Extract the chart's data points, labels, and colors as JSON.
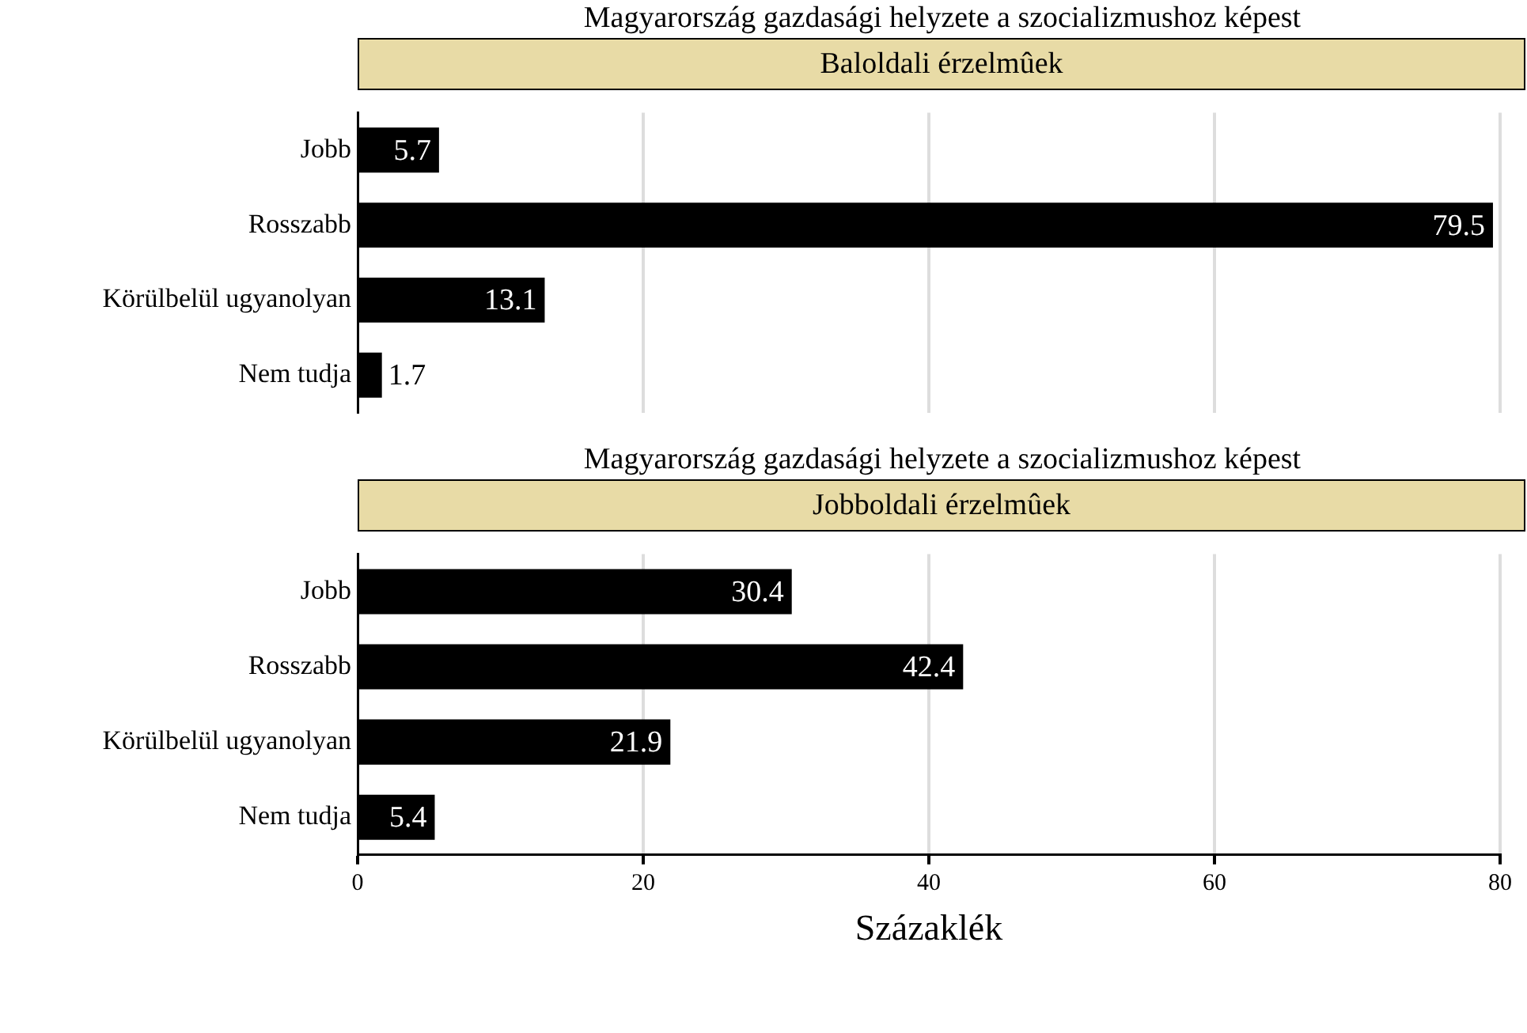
{
  "chart_data": [
    {
      "type": "bar",
      "orientation": "horizontal",
      "title": "Magyarország gazdasági helyzete a szocializmushoz képest",
      "subtitle": "Baloldali érzelmûek",
      "categories": [
        "Jobb",
        "Rosszabb",
        "Körülbelül ugyanolyan",
        "Nem tudja"
      ],
      "values": [
        5.7,
        79.5,
        13.1,
        1.7
      ],
      "color": "#000000",
      "xlim": [
        0,
        80
      ],
      "xticks": [
        0,
        20,
        40,
        60,
        80
      ],
      "grid": "x",
      "legend": false,
      "data_labels": true,
      "tick_labels": "y"
    },
    {
      "type": "bar",
      "orientation": "horizontal",
      "title": "Magyarország gazdasági helyzete a szocializmushoz képest",
      "subtitle": "Jobboldali érzelmûek",
      "xlabel": "Százaklék",
      "categories": [
        "Jobb",
        "Rosszabb",
        "Körülbelül ugyanolyan",
        "Nem tudja"
      ],
      "values": [
        30.4,
        42.4,
        21.9,
        5.4
      ],
      "color": "#000000",
      "xlim": [
        0,
        80
      ],
      "xticks": [
        0,
        20,
        40,
        60,
        80
      ],
      "grid": "x",
      "legend": false,
      "data_labels": true
    }
  ]
}
